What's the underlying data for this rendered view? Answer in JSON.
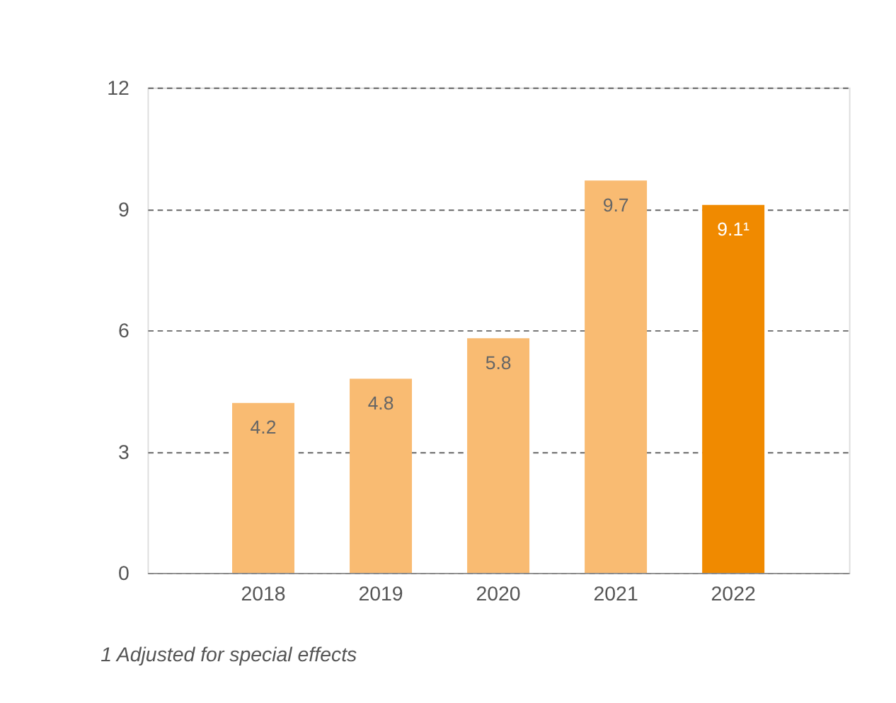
{
  "chart_data": {
    "type": "bar",
    "categories": [
      "2018",
      "2019",
      "2020",
      "2021",
      "2022"
    ],
    "values": [
      4.2,
      4.8,
      5.8,
      9.7,
      9.1
    ],
    "colors": [
      "#f9bb72",
      "#f9bb72",
      "#f9bb72",
      "#f9bb72",
      "#f08a00"
    ],
    "value_labels": [
      "4.2",
      "4.8",
      "5.8",
      "9.7",
      "9.1¹"
    ],
    "ylim": [
      0,
      12
    ],
    "yticks": [
      0,
      3,
      6,
      9,
      12
    ],
    "grid": "y",
    "annotations": [
      "1 Adjusted for special effects"
    ]
  }
}
